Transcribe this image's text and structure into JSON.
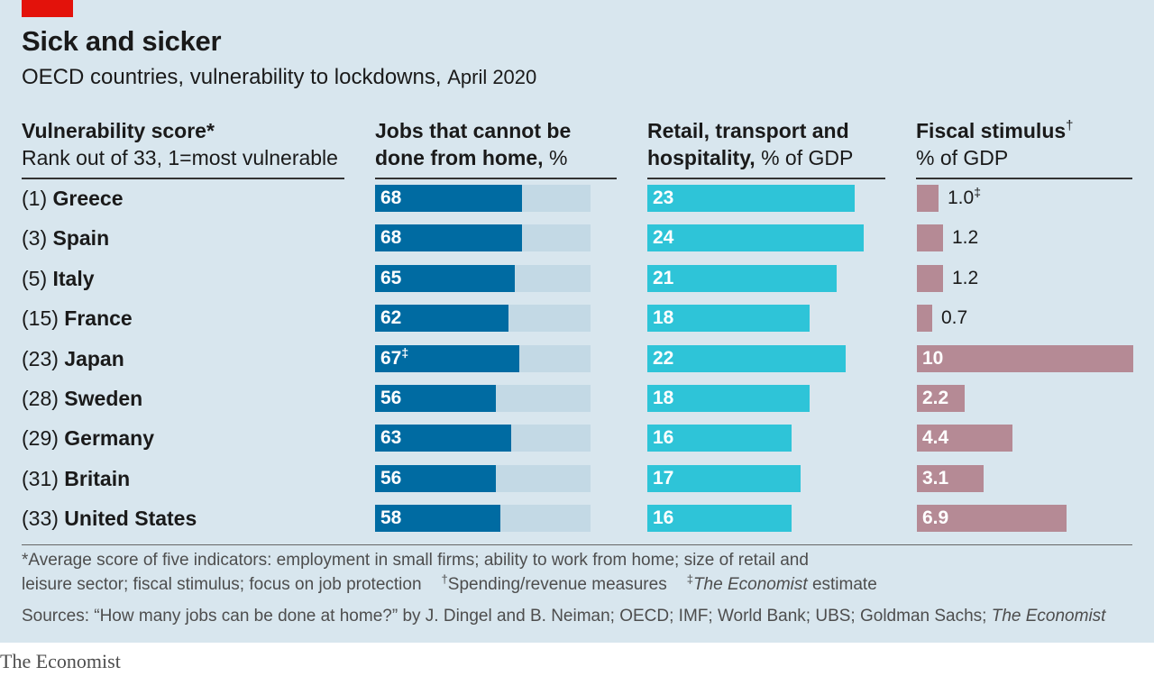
{
  "title": "Sick and sicker",
  "subtitle": "OECD countries, vulnerability to lockdowns,",
  "subtitle_date": "April 2020",
  "columns": {
    "vulnerability": {
      "bold": "Vulnerability score*",
      "normal": "Rank out of 33, 1=most vulnerable"
    },
    "jobs": {
      "line1_bold": "Jobs that cannot be",
      "line2_bold": "done from home,",
      "line2_normal": "%"
    },
    "retail": {
      "line1_bold": "Retail, transport and",
      "line2_bold": "hospitality,",
      "line2_normal": "% of GDP"
    },
    "fiscal": {
      "line1_bold": "Fiscal stimulus",
      "line1_sup": "†",
      "line2_normal": "% of GDP"
    }
  },
  "footnotes": {
    "line1": "*Average score of five indicators: employment in small firms; ability to work from home; size of retail and",
    "line2": "leisure sector; fiscal stimulus; focus on job protection",
    "dagger": "†",
    "dagger_text": "Spending/revenue measures",
    "ddagger": "‡",
    "ddagger_italic": "The Economist",
    "ddagger_text": "estimate",
    "sources": "Sources: “How many jobs can be done at home?” by J. Dingel and B. Neiman; OECD; IMF; World Bank; UBS; Goldman Sachs;",
    "sources_italic": "The Economist"
  },
  "brand": "The Economist",
  "colors": {
    "background": "#d8e6ee",
    "jobs_bar": "#006ba2",
    "jobs_track": "#c3d9e5",
    "retail_bar": "#2ec4d8",
    "fiscal_bar": "#b58a95",
    "accent_red": "#e3120b"
  },
  "chart_data": {
    "type": "bar",
    "categories": [
      "Greece",
      "Spain",
      "Italy",
      "France",
      "Japan",
      "Sweden",
      "Germany",
      "Britain",
      "United States"
    ],
    "ranks": [
      "(1)",
      "(3)",
      "(5)",
      "(15)",
      "(23)",
      "(28)",
      "(29)",
      "(31)",
      "(33)"
    ],
    "series": [
      {
        "name": "Jobs that cannot be done from home, %",
        "values": [
          68,
          68,
          65,
          62,
          67,
          56,
          63,
          56,
          58
        ],
        "labels": [
          "68",
          "68",
          "65",
          "62",
          "67",
          "56",
          "63",
          "56",
          "58"
        ],
        "marks": [
          "",
          "",
          "",
          "",
          "‡",
          "",
          "",
          "",
          ""
        ],
        "xlim": [
          0,
          100
        ]
      },
      {
        "name": "Retail, transport and hospitality, % of GDP",
        "values": [
          23,
          24,
          21,
          18,
          22,
          18,
          16,
          17,
          16
        ],
        "labels": [
          "23",
          "24",
          "21",
          "18",
          "22",
          "18",
          "16",
          "17",
          "16"
        ],
        "marks": [
          "",
          "",
          "",
          "",
          "",
          "",
          "",
          "",
          ""
        ],
        "xlim": [
          0,
          25
        ]
      },
      {
        "name": "Fiscal stimulus, % of GDP",
        "values": [
          1.0,
          1.2,
          1.2,
          0.7,
          10,
          2.2,
          4.4,
          3.1,
          6.9
        ],
        "labels": [
          "1.0",
          "1.2",
          "1.2",
          "0.7",
          "10",
          "2.2",
          "4.4",
          "3.1",
          "6.9"
        ],
        "marks": [
          "‡",
          "",
          "",
          "",
          "",
          "",
          "",
          "",
          ""
        ],
        "xlim": [
          0,
          10
        ]
      }
    ]
  }
}
